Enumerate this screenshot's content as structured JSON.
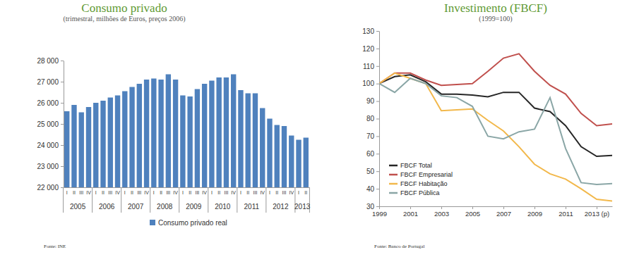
{
  "chart_data": [
    {
      "type": "bar",
      "title": "Consumo privado",
      "subtitle": "(trimestral, milhões de Euros, preços 2006)",
      "source": "Fonte: INE",
      "categories": [
        "I",
        "II",
        "III",
        "IV",
        "I",
        "II",
        "III",
        "IV",
        "I",
        "II",
        "III",
        "IV",
        "I",
        "II",
        "III",
        "IV",
        "I",
        "II",
        "III",
        "IV",
        "I",
        "II",
        "III",
        "IV",
        "I",
        "II",
        "III",
        "IV",
        "I",
        "II",
        "III",
        "IV",
        "I",
        "II"
      ],
      "x_groups": [
        {
          "label": "2005",
          "size": 4
        },
        {
          "label": "2006",
          "size": 4
        },
        {
          "label": "2007",
          "size": 4
        },
        {
          "label": "2008",
          "size": 4
        },
        {
          "label": "2009",
          "size": 4
        },
        {
          "label": "2010",
          "size": 4
        },
        {
          "label": "2011",
          "size": 4
        },
        {
          "label": "2012",
          "size": 4
        },
        {
          "label": "2013",
          "size": 2
        }
      ],
      "series": [
        {
          "name": "Consumo privado real",
          "color": "#4f81bd",
          "values": [
            25600,
            25900,
            25550,
            25800,
            26000,
            26100,
            26250,
            26350,
            26550,
            26750,
            26900,
            27100,
            27150,
            27100,
            27350,
            27100,
            26350,
            26300,
            26650,
            26900,
            27050,
            27200,
            27200,
            27350,
            26600,
            26450,
            26450,
            25750,
            25250,
            24950,
            24900,
            24450,
            24250,
            24350
          ]
        }
      ],
      "ylim": [
        22000,
        28000
      ],
      "yticks": [
        {
          "value": 22000,
          "label": "22 000"
        },
        {
          "value": 23000,
          "label": "23 000"
        },
        {
          "value": 24000,
          "label": "24 000"
        },
        {
          "value": 25000,
          "label": "25 000"
        },
        {
          "value": 26000,
          "label": "26 000"
        },
        {
          "value": 27000,
          "label": "27 000"
        },
        {
          "value": 28000,
          "label": "28 000"
        }
      ],
      "grid": false,
      "legend": "bottom"
    },
    {
      "type": "line",
      "title": "Investimento (FBCF)",
      "subtitle": "(1999=100)",
      "source": "Fonte: Banco de Portugal",
      "x": [
        1999,
        2000,
        2001,
        2002,
        2003,
        2004,
        2005,
        2006,
        2007,
        2008,
        2009,
        2010,
        2011,
        2012,
        2013,
        2014
      ],
      "series": [
        {
          "name": "FBCF Total",
          "color": "#262626",
          "values": [
            100,
            104,
            105,
            101,
            94,
            94,
            93.5,
            92.5,
            95,
            95,
            86,
            84,
            76,
            64,
            58.5,
            59
          ]
        },
        {
          "name": "FBCF Empresarial",
          "color": "#c0504d",
          "values": [
            100,
            106,
            106,
            102,
            99,
            99.5,
            100,
            107,
            114.5,
            117,
            107,
            99,
            94,
            83,
            76,
            77
          ]
        },
        {
          "name": "FBCF Habitação",
          "color": "#f2b84b",
          "values": [
            100,
            106,
            103,
            100,
            84.5,
            85,
            85.5,
            79,
            73,
            64,
            54,
            48.5,
            45.5,
            40,
            34,
            33
          ]
        },
        {
          "name": "FBCF Pública",
          "color": "#8aa6a6",
          "values": [
            100,
            95,
            103,
            100,
            93,
            92,
            87,
            70,
            68.5,
            72.5,
            74,
            92,
            63,
            43.5,
            42.5,
            43
          ]
        }
      ],
      "xlim": [
        1999,
        2014
      ],
      "xticks": [
        1999,
        2001,
        2003,
        2005,
        2007,
        2009,
        2011,
        {
          "value": 2013,
          "label": "2013 (p)"
        }
      ],
      "ylim": [
        30,
        130
      ],
      "yticks": [
        30,
        40,
        50,
        60,
        70,
        80,
        90,
        100,
        110,
        120,
        130
      ],
      "grid": false,
      "legend": "bottom left"
    }
  ]
}
